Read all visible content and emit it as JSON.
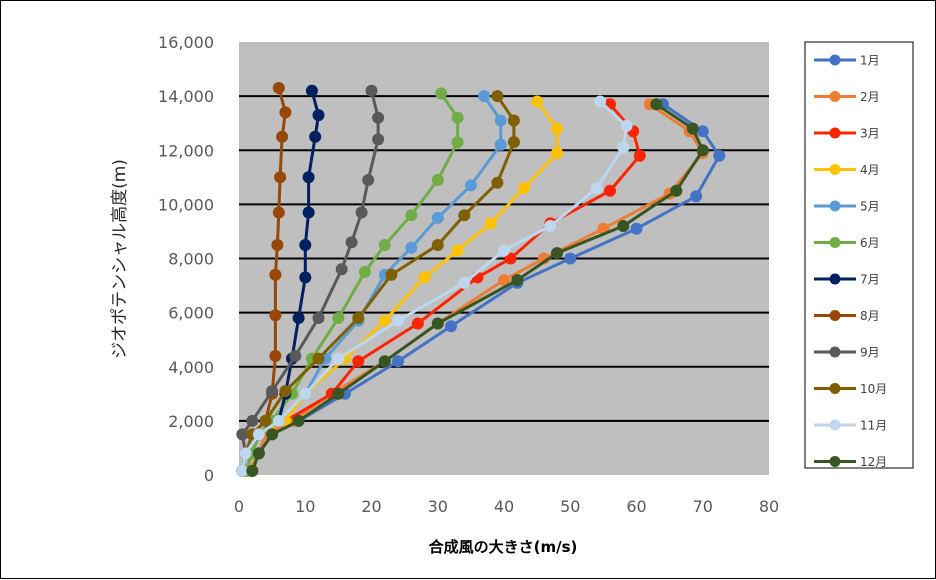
{
  "chart_data": {
    "type": "line",
    "title": "",
    "xlabel": "合成風の大きさ(m/s)",
    "ylabel": "ジオポテンシャル高度(m)",
    "xlim": [
      0,
      80
    ],
    "ylim": [
      0,
      16000
    ],
    "x_ticks": [
      "0",
      "10",
      "20",
      "30",
      "40",
      "50",
      "60",
      "70",
      "80"
    ],
    "y_ticks": [
      "0",
      "2,000",
      "4,000",
      "6,000",
      "8,000",
      "10,000",
      "12,000",
      "14,000",
      "16,000"
    ],
    "grid": "horizontal",
    "legend_position": "right",
    "background": "#bfbfbf",
    "series": [
      {
        "name": "1月",
        "color": "#4472c4",
        "points": [
          [
            2,
            150
          ],
          [
            3,
            800
          ],
          [
            5,
            1500
          ],
          [
            9,
            2000
          ],
          [
            16,
            3000
          ],
          [
            24,
            4200
          ],
          [
            32,
            5500
          ],
          [
            42,
            7100
          ],
          [
            50,
            8000
          ],
          [
            60,
            9100
          ],
          [
            69,
            10300
          ],
          [
            72.5,
            11800
          ],
          [
            70,
            12700
          ],
          [
            64,
            13700
          ]
        ]
      },
      {
        "name": "2月",
        "color": "#ed7d31",
        "points": [
          [
            1.5,
            150
          ],
          [
            3,
            800
          ],
          [
            4,
            1500
          ],
          [
            8,
            2000
          ],
          [
            14,
            3000
          ],
          [
            22,
            4200
          ],
          [
            30,
            5600
          ],
          [
            40,
            7200
          ],
          [
            46,
            8000
          ],
          [
            55,
            9100
          ],
          [
            65,
            10400
          ],
          [
            70,
            11900
          ],
          [
            68,
            12700
          ],
          [
            62,
            13700
          ]
        ]
      },
      {
        "name": "3月",
        "color": "#ff2400",
        "points": [
          [
            1,
            150
          ],
          [
            2,
            800
          ],
          [
            3,
            1500
          ],
          [
            7,
            2000
          ],
          [
            14,
            3000
          ],
          [
            18,
            4200
          ],
          [
            27,
            5600
          ],
          [
            36,
            7300
          ],
          [
            41,
            8000
          ],
          [
            47,
            9300
          ],
          [
            56,
            10500
          ],
          [
            60.5,
            11800
          ],
          [
            59.5,
            12700
          ],
          [
            56,
            13700
          ]
        ]
      },
      {
        "name": "4月",
        "color": "#ffc000",
        "points": [
          [
            1,
            150
          ],
          [
            2,
            800
          ],
          [
            3,
            1500
          ],
          [
            7,
            2000
          ],
          [
            10,
            3000
          ],
          [
            16,
            4300
          ],
          [
            22,
            5700
          ],
          [
            28,
            7300
          ],
          [
            33,
            8300
          ],
          [
            38,
            9300
          ],
          [
            43,
            10600
          ],
          [
            48,
            11900
          ],
          [
            48,
            12800
          ],
          [
            45,
            13800
          ]
        ]
      },
      {
        "name": "5月",
        "color": "#5b9bd5",
        "points": [
          [
            1,
            150
          ],
          [
            2,
            800
          ],
          [
            3,
            1500
          ],
          [
            6,
            2000
          ],
          [
            10,
            3000
          ],
          [
            13,
            4300
          ],
          [
            18,
            5700
          ],
          [
            22,
            7400
          ],
          [
            26,
            8400
          ],
          [
            30,
            9500
          ],
          [
            35,
            10700
          ],
          [
            39.5,
            12200
          ],
          [
            39.5,
            13100
          ],
          [
            37,
            14000
          ]
        ]
      },
      {
        "name": "6月",
        "color": "#70ad47",
        "points": [
          [
            1,
            150
          ],
          [
            2,
            800
          ],
          [
            3,
            1500
          ],
          [
            5,
            2000
          ],
          [
            8,
            3000
          ],
          [
            11,
            4300
          ],
          [
            15,
            5800
          ],
          [
            19,
            7500
          ],
          [
            22,
            8500
          ],
          [
            26,
            9600
          ],
          [
            30,
            10900
          ],
          [
            33,
            12300
          ],
          [
            33,
            13200
          ],
          [
            30.5,
            14100
          ]
        ]
      },
      {
        "name": "7月",
        "color": "#002060",
        "points": [
          [
            0.5,
            150
          ],
          [
            1,
            800
          ],
          [
            3,
            1500
          ],
          [
            6,
            2000
          ],
          [
            7,
            3000
          ],
          [
            8,
            4300
          ],
          [
            9,
            5800
          ],
          [
            10,
            7300
          ],
          [
            10,
            8500
          ],
          [
            10.5,
            9700
          ],
          [
            10.5,
            11000
          ],
          [
            11.5,
            12500
          ],
          [
            12,
            13300
          ],
          [
            11,
            14200
          ]
        ]
      },
      {
        "name": "8月",
        "color": "#974706",
        "points": [
          [
            0.5,
            150
          ],
          [
            1,
            800
          ],
          [
            2,
            1500
          ],
          [
            4,
            2000
          ],
          [
            5,
            3000
          ],
          [
            5.5,
            4400
          ],
          [
            5.5,
            5900
          ],
          [
            5.5,
            7400
          ],
          [
            5.8,
            8500
          ],
          [
            6,
            9700
          ],
          [
            6.2,
            11000
          ],
          [
            6.5,
            12500
          ],
          [
            7,
            13400
          ],
          [
            6,
            14300
          ]
        ]
      },
      {
        "name": "9月",
        "color": "#595959",
        "points": [
          [
            0.5,
            150
          ],
          [
            1,
            800
          ],
          [
            0.5,
            1500
          ],
          [
            2,
            2000
          ],
          [
            5,
            3100
          ],
          [
            8.5,
            4400
          ],
          [
            12,
            5800
          ],
          [
            15.5,
            7600
          ],
          [
            17,
            8600
          ],
          [
            18.5,
            9700
          ],
          [
            19.5,
            10900
          ],
          [
            21,
            12400
          ],
          [
            21,
            13200
          ],
          [
            20,
            14200
          ]
        ]
      },
      {
        "name": "10月",
        "color": "#7f6000",
        "points": [
          [
            0.5,
            150
          ],
          [
            1,
            800
          ],
          [
            2,
            1500
          ],
          [
            4,
            2000
          ],
          [
            7,
            3100
          ],
          [
            12,
            4300
          ],
          [
            18,
            5800
          ],
          [
            23,
            7400
          ],
          [
            30,
            8500
          ],
          [
            34,
            9600
          ],
          [
            39,
            10800
          ],
          [
            41.5,
            12300
          ],
          [
            41.5,
            13100
          ],
          [
            39,
            14000
          ]
        ]
      },
      {
        "name": "11月",
        "color": "#bdd7ee",
        "points": [
          [
            0.5,
            150
          ],
          [
            1,
            800
          ],
          [
            3,
            1500
          ],
          [
            6,
            2000
          ],
          [
            10,
            3000
          ],
          [
            15,
            4300
          ],
          [
            24,
            5700
          ],
          [
            34,
            7100
          ],
          [
            40,
            8300
          ],
          [
            47,
            9200
          ],
          [
            54,
            10600
          ],
          [
            58,
            12100
          ],
          [
            58.5,
            12900
          ],
          [
            54.5,
            13800
          ]
        ]
      },
      {
        "name": "12月",
        "color": "#375623",
        "points": [
          [
            2,
            150
          ],
          [
            3,
            800
          ],
          [
            5,
            1500
          ],
          [
            9,
            2000
          ],
          [
            15,
            3000
          ],
          [
            22,
            4200
          ],
          [
            30,
            5600
          ],
          [
            42,
            7200
          ],
          [
            48,
            8200
          ],
          [
            58,
            9200
          ],
          [
            66,
            10500
          ],
          [
            70,
            12000
          ],
          [
            68.5,
            12800
          ],
          [
            63,
            13700
          ]
        ]
      }
    ]
  }
}
